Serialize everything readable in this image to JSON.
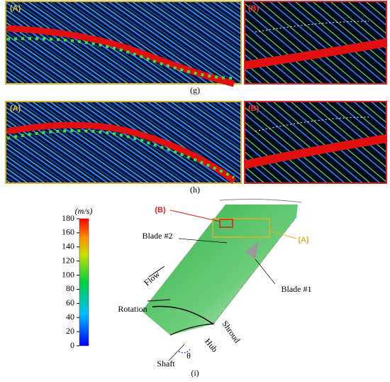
{
  "panels": {
    "g": {
      "label_a": "(A)",
      "label_b": "(B)",
      "caption": "(g)"
    },
    "h": {
      "label_a": "(A)",
      "label_b": "(B)",
      "caption": "(h)"
    }
  },
  "diagram": {
    "caption": "(i)",
    "colorbar": {
      "unit": "(m/s)",
      "ticks": [
        0,
        20,
        40,
        60,
        80,
        100,
        120,
        140,
        160,
        180
      ]
    },
    "labels": {
      "b": "(B)",
      "a": "(A)",
      "blade2": "Blade #2",
      "blade1": "Blade #1",
      "flow": "Flow",
      "rotation": "Rotation",
      "shroud": "Shroud",
      "hub": "Hub",
      "shaft": "Shaft",
      "theta": "θ"
    }
  }
}
